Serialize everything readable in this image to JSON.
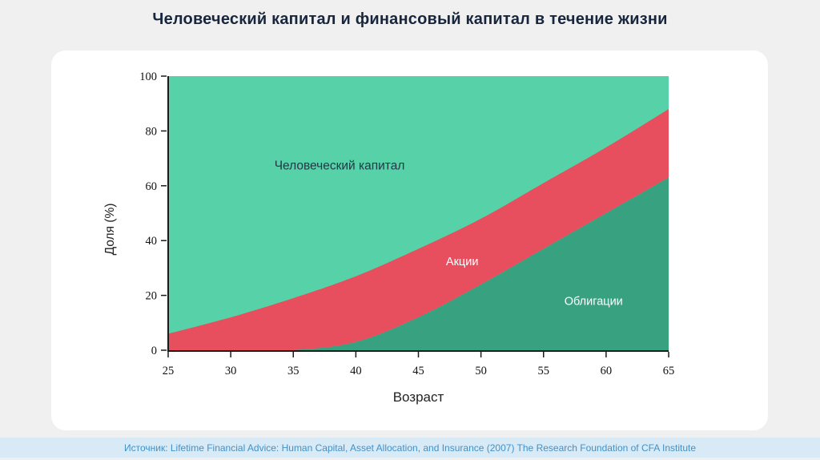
{
  "title": "Человеческий капитал и финансовый капитал в течение жизни",
  "source": "Источник: Lifetime Financial Advice: Human Capital, Asset Allocation, and Insurance (2007) The Research Foundation of CFA Institute",
  "colors": {
    "page_bg": "#f0f0f1",
    "card_bg": "#ffffff",
    "title_color": "#17263c",
    "footer_bg": "#d8eaf6",
    "footer_text": "#4191c9",
    "axis_color": "#1a1a1a",
    "tick_text": "#111111"
  },
  "chart_data": {
    "type": "area",
    "stacked": true,
    "title": "Человеческий капитал и финансовый капитал в течение жизни",
    "xlabel": "Возраст",
    "ylabel": "Доля (%)",
    "xlim": [
      25,
      65
    ],
    "ylim": [
      0,
      100
    ],
    "x": [
      25,
      30,
      35,
      40,
      45,
      50,
      55,
      60,
      65
    ],
    "x_ticks": [
      25,
      30,
      35,
      40,
      45,
      50,
      55,
      60,
      65
    ],
    "y_ticks": [
      0,
      20,
      40,
      60,
      80,
      100
    ],
    "grid": false,
    "legend": "none (labels drawn inside areas)",
    "series": [
      {
        "key": "bonds",
        "name": "Облигации",
        "values": [
          0,
          0,
          0,
          3,
          12,
          24,
          37,
          50,
          63
        ],
        "color": "#38a17f"
      },
      {
        "key": "stocks",
        "name": "Акции",
        "values": [
          6,
          12,
          19,
          24,
          25,
          24,
          24,
          24,
          25
        ],
        "color": "#e84f5e"
      },
      {
        "key": "human-capital",
        "name": "Человеческий капитал",
        "values": [
          94,
          88,
          81,
          73,
          63,
          52,
          39,
          26,
          12
        ],
        "color": "#57d2a8"
      }
    ],
    "labels": [
      {
        "key": "human-capital",
        "text": "Человеческий капитал",
        "x": 38.7,
        "y": 66,
        "color": "#243746",
        "size": 15.5
      },
      {
        "key": "stocks",
        "text": "Акции",
        "x": 48.5,
        "y": 31,
        "color": "#ffffff",
        "size": 14.5
      },
      {
        "key": "bonds",
        "text": "Облигации",
        "x": 59,
        "y": 16.5,
        "color": "#ffffff",
        "size": 14.5
      }
    ]
  }
}
